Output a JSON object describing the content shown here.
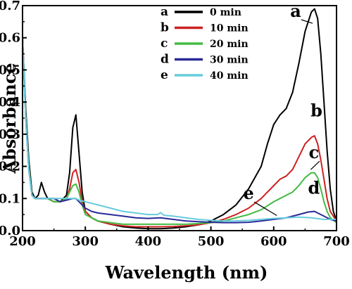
{
  "chart_data": {
    "type": "line",
    "xlabel": "Wavelength (nm)",
    "ylabel": "Absorbance",
    "xlim": [
      200,
      700
    ],
    "ylim": [
      0.0,
      0.7
    ],
    "xticks": [
      "200",
      "300",
      "400",
      "500",
      "600",
      "700"
    ],
    "yticks": [
      "0.0",
      "0.1",
      "0.2",
      "0.3",
      "0.4",
      "0.5",
      "0.6",
      "0.7"
    ],
    "grid": false,
    "legend_position": "top-center",
    "series": [
      {
        "name": "0 min",
        "letter": "a",
        "color": "#000000",
        "points": [
          [
            200,
            0.6
          ],
          [
            205,
            0.38
          ],
          [
            210,
            0.22
          ],
          [
            215,
            0.12
          ],
          [
            220,
            0.1
          ],
          [
            225,
            0.11
          ],
          [
            230,
            0.15
          ],
          [
            235,
            0.12
          ],
          [
            240,
            0.1
          ],
          [
            250,
            0.09
          ],
          [
            260,
            0.09
          ],
          [
            270,
            0.11
          ],
          [
            275,
            0.18
          ],
          [
            280,
            0.32
          ],
          [
            285,
            0.36
          ],
          [
            290,
            0.24
          ],
          [
            295,
            0.12
          ],
          [
            300,
            0.06
          ],
          [
            310,
            0.04
          ],
          [
            320,
            0.03
          ],
          [
            340,
            0.02
          ],
          [
            360,
            0.012
          ],
          [
            380,
            0.008
          ],
          [
            400,
            0.006
          ],
          [
            420,
            0.006
          ],
          [
            440,
            0.008
          ],
          [
            460,
            0.012
          ],
          [
            480,
            0.018
          ],
          [
            500,
            0.03
          ],
          [
            520,
            0.05
          ],
          [
            540,
            0.08
          ],
          [
            560,
            0.13
          ],
          [
            580,
            0.2
          ],
          [
            590,
            0.27
          ],
          [
            600,
            0.33
          ],
          [
            610,
            0.36
          ],
          [
            620,
            0.38
          ],
          [
            630,
            0.43
          ],
          [
            640,
            0.52
          ],
          [
            650,
            0.62
          ],
          [
            660,
            0.68
          ],
          [
            665,
            0.69
          ],
          [
            670,
            0.66
          ],
          [
            675,
            0.55
          ],
          [
            680,
            0.4
          ],
          [
            685,
            0.25
          ],
          [
            690,
            0.13
          ],
          [
            695,
            0.06
          ],
          [
            700,
            0.03
          ]
        ]
      },
      {
        "name": "10 min",
        "letter": "b",
        "color": "#cc2222",
        "points": [
          [
            200,
            0.6
          ],
          [
            205,
            0.36
          ],
          [
            210,
            0.2
          ],
          [
            215,
            0.11
          ],
          [
            220,
            0.1
          ],
          [
            230,
            0.1
          ],
          [
            240,
            0.1
          ],
          [
            250,
            0.09
          ],
          [
            260,
            0.09
          ],
          [
            270,
            0.1
          ],
          [
            275,
            0.13
          ],
          [
            280,
            0.18
          ],
          [
            285,
            0.19
          ],
          [
            290,
            0.15
          ],
          [
            295,
            0.09
          ],
          [
            300,
            0.06
          ],
          [
            310,
            0.04
          ],
          [
            320,
            0.03
          ],
          [
            340,
            0.02
          ],
          [
            360,
            0.015
          ],
          [
            380,
            0.012
          ],
          [
            400,
            0.012
          ],
          [
            420,
            0.012
          ],
          [
            440,
            0.013
          ],
          [
            460,
            0.015
          ],
          [
            480,
            0.018
          ],
          [
            500,
            0.025
          ],
          [
            520,
            0.035
          ],
          [
            540,
            0.05
          ],
          [
            560,
            0.07
          ],
          [
            580,
            0.1
          ],
          [
            600,
            0.14
          ],
          [
            610,
            0.16
          ],
          [
            620,
            0.17
          ],
          [
            630,
            0.19
          ],
          [
            640,
            0.23
          ],
          [
            650,
            0.27
          ],
          [
            660,
            0.29
          ],
          [
            665,
            0.295
          ],
          [
            670,
            0.27
          ],
          [
            675,
            0.22
          ],
          [
            680,
            0.16
          ],
          [
            685,
            0.1
          ],
          [
            690,
            0.06
          ],
          [
            700,
            0.03
          ]
        ]
      },
      {
        "name": "20 min",
        "letter": "c",
        "color": "#44bb44",
        "points": [
          [
            200,
            0.6
          ],
          [
            205,
            0.36
          ],
          [
            210,
            0.2
          ],
          [
            215,
            0.11
          ],
          [
            220,
            0.1
          ],
          [
            230,
            0.1
          ],
          [
            240,
            0.1
          ],
          [
            250,
            0.09
          ],
          [
            260,
            0.09
          ],
          [
            270,
            0.1
          ],
          [
            275,
            0.12
          ],
          [
            280,
            0.14
          ],
          [
            285,
            0.145
          ],
          [
            290,
            0.12
          ],
          [
            295,
            0.08
          ],
          [
            300,
            0.05
          ],
          [
            310,
            0.04
          ],
          [
            320,
            0.03
          ],
          [
            340,
            0.025
          ],
          [
            360,
            0.02
          ],
          [
            380,
            0.02
          ],
          [
            400,
            0.02
          ],
          [
            420,
            0.02
          ],
          [
            440,
            0.02
          ],
          [
            460,
            0.02
          ],
          [
            480,
            0.022
          ],
          [
            500,
            0.025
          ],
          [
            520,
            0.03
          ],
          [
            540,
            0.04
          ],
          [
            560,
            0.05
          ],
          [
            580,
            0.065
          ],
          [
            600,
            0.09
          ],
          [
            610,
            0.1
          ],
          [
            620,
            0.11
          ],
          [
            630,
            0.12
          ],
          [
            640,
            0.14
          ],
          [
            650,
            0.165
          ],
          [
            660,
            0.18
          ],
          [
            665,
            0.18
          ],
          [
            670,
            0.165
          ],
          [
            675,
            0.13
          ],
          [
            680,
            0.09
          ],
          [
            685,
            0.06
          ],
          [
            690,
            0.04
          ],
          [
            700,
            0.025
          ]
        ]
      },
      {
        "name": "30 min",
        "letter": "d",
        "color": "#2a2a99",
        "points": [
          [
            200,
            0.6
          ],
          [
            205,
            0.35
          ],
          [
            210,
            0.19
          ],
          [
            215,
            0.11
          ],
          [
            220,
            0.1
          ],
          [
            230,
            0.1
          ],
          [
            240,
            0.1
          ],
          [
            250,
            0.1
          ],
          [
            260,
            0.09
          ],
          [
            270,
            0.095
          ],
          [
            280,
            0.1
          ],
          [
            285,
            0.1
          ],
          [
            290,
            0.09
          ],
          [
            300,
            0.07
          ],
          [
            310,
            0.06
          ],
          [
            320,
            0.055
          ],
          [
            340,
            0.05
          ],
          [
            360,
            0.045
          ],
          [
            380,
            0.04
          ],
          [
            400,
            0.038
          ],
          [
            420,
            0.04
          ],
          [
            440,
            0.035
          ],
          [
            460,
            0.03
          ],
          [
            480,
            0.028
          ],
          [
            500,
            0.026
          ],
          [
            520,
            0.025
          ],
          [
            540,
            0.025
          ],
          [
            560,
            0.026
          ],
          [
            580,
            0.03
          ],
          [
            600,
            0.035
          ],
          [
            620,
            0.04
          ],
          [
            640,
            0.05
          ],
          [
            655,
            0.058
          ],
          [
            665,
            0.06
          ],
          [
            670,
            0.055
          ],
          [
            680,
            0.045
          ],
          [
            690,
            0.035
          ],
          [
            700,
            0.03
          ]
        ]
      },
      {
        "name": "40 min",
        "letter": "e",
        "color": "#66ccdd",
        "points": [
          [
            200,
            0.6
          ],
          [
            205,
            0.35
          ],
          [
            210,
            0.19
          ],
          [
            215,
            0.11
          ],
          [
            220,
            0.1
          ],
          [
            230,
            0.1
          ],
          [
            240,
            0.1
          ],
          [
            250,
            0.1
          ],
          [
            260,
            0.1
          ],
          [
            270,
            0.1
          ],
          [
            280,
            0.1
          ],
          [
            285,
            0.1
          ],
          [
            290,
            0.095
          ],
          [
            300,
            0.09
          ],
          [
            320,
            0.08
          ],
          [
            340,
            0.07
          ],
          [
            360,
            0.06
          ],
          [
            380,
            0.055
          ],
          [
            400,
            0.05
          ],
          [
            415,
            0.05
          ],
          [
            420,
            0.056
          ],
          [
            425,
            0.048
          ],
          [
            440,
            0.045
          ],
          [
            460,
            0.04
          ],
          [
            480,
            0.035
          ],
          [
            500,
            0.032
          ],
          [
            520,
            0.03
          ],
          [
            540,
            0.03
          ],
          [
            560,
            0.032
          ],
          [
            580,
            0.035
          ],
          [
            600,
            0.038
          ],
          [
            620,
            0.04
          ],
          [
            640,
            0.042
          ],
          [
            660,
            0.04
          ],
          [
            680,
            0.035
          ],
          [
            700,
            0.035
          ]
        ]
      }
    ],
    "annotations": [
      {
        "text": "a",
        "x": 635,
        "y": 0.665,
        "arrow_x": 662,
        "arrow_y": 0.645
      },
      {
        "text": "b",
        "x": 668,
        "y": 0.355,
        "arrow_x": 0,
        "arrow_y": 0
      },
      {
        "text": "c",
        "x": 664,
        "y": 0.225,
        "arrow_x": 659,
        "arrow_y": 0.19
      },
      {
        "text": "d",
        "x": 664,
        "y": 0.115,
        "arrow_x": 0,
        "arrow_y": 0
      },
      {
        "text": "e",
        "x": 560,
        "y": 0.098,
        "arrow_x": 605,
        "arrow_y": 0.047
      }
    ]
  }
}
